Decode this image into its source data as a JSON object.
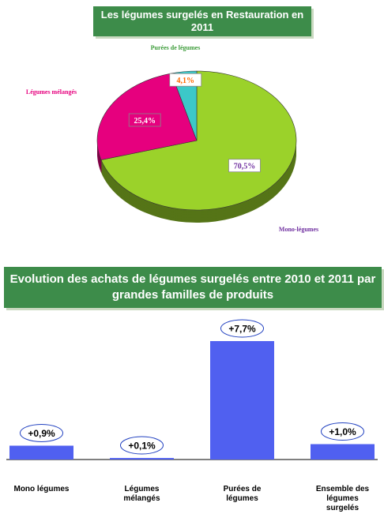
{
  "chart_data": [
    {
      "type": "pie",
      "title": "Les légumes surgelés en Restauration en 2011",
      "categories": [
        "Mono-légumes",
        "Légumes mélangés",
        "Purées de légumes"
      ],
      "values": [
        70.5,
        25.4,
        4.1
      ],
      "value_labels": [
        "70,5%",
        "25,4%",
        "4,1%"
      ],
      "colors": [
        "#9bd22a",
        "#e6007e",
        "#3cc8c8"
      ]
    },
    {
      "type": "bar",
      "title": "Evolution des achats de légumes surgelés entre 2010 et 2011 par grandes familles de produits",
      "categories": [
        "Mono légumes",
        "Légumes mélangés",
        "Purées de légumes",
        "Ensemble des légumes surgelés"
      ],
      "values": [
        0.9,
        0.1,
        7.7,
        1.0
      ],
      "value_labels": [
        "+0,9%",
        "+0,1%",
        "+7,7%",
        "+1,0%"
      ],
      "color": "#5060f0"
    }
  ]
}
